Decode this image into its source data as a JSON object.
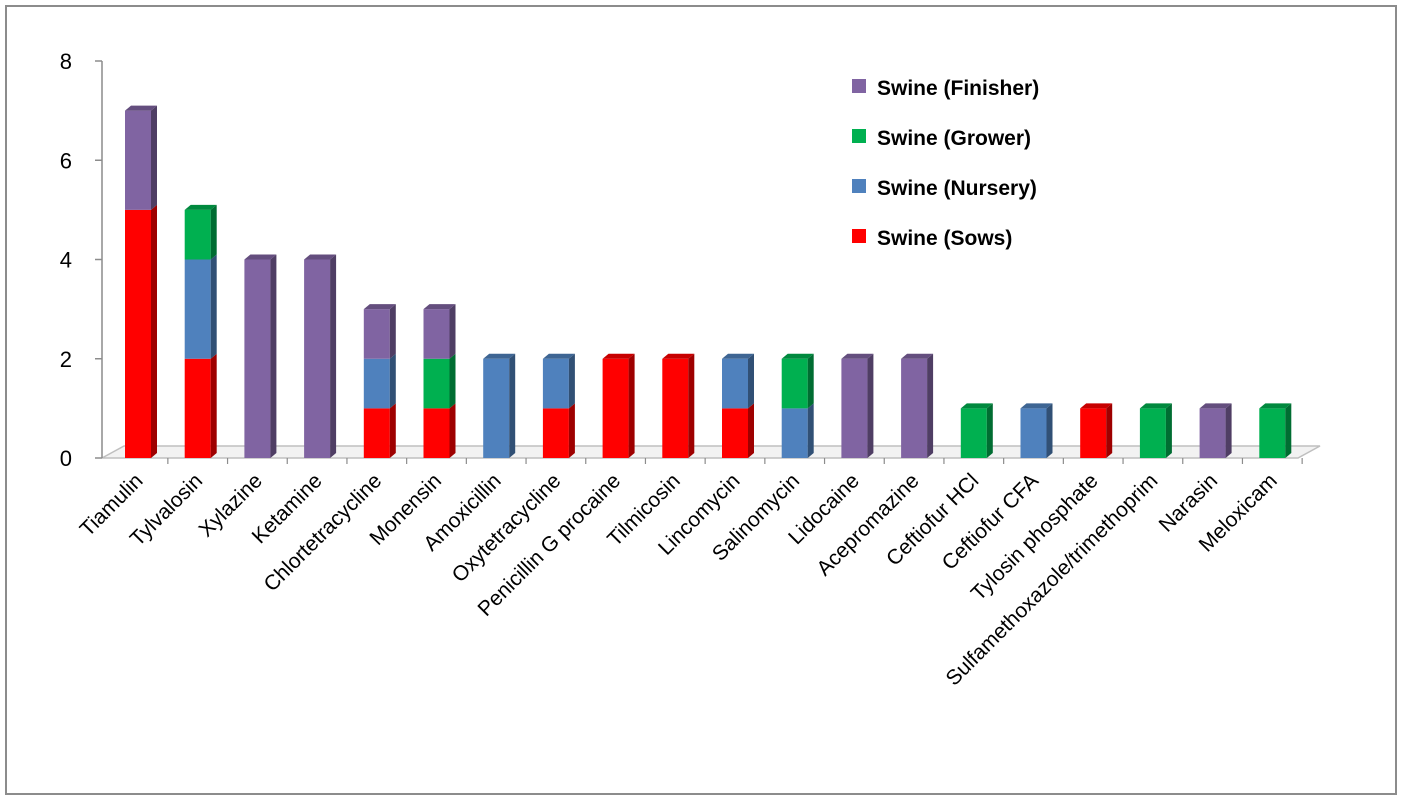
{
  "chart_data": {
    "type": "bar",
    "stacked": true,
    "three_d": true,
    "categories": [
      "Tiamulin",
      "Tylvalosin",
      "Xylazine",
      "Ketamine",
      "Chlortetracycline",
      "Monensin",
      "Amoxicillin",
      "Oxytetracycline",
      "Penicillin G procaine",
      "Tilmicosin",
      "Lincomycin",
      "Salinomycin",
      "Lidocaine",
      "Acepromazine",
      "Ceftiofur HCl",
      "Ceftiofur CFA",
      "Tylosin phosphate",
      "Sulfamethoxazole/trimethoprim",
      "Narasin",
      "Meloxicam"
    ],
    "series": [
      {
        "name": "Swine (Sows)",
        "color": "#ff0000",
        "values": [
          5,
          2,
          0,
          0,
          1,
          1,
          0,
          1,
          2,
          2,
          1,
          0,
          0,
          0,
          0,
          0,
          1,
          0,
          0,
          0
        ]
      },
      {
        "name": "Swine (Nursery)",
        "color": "#4f81bd",
        "values": [
          0,
          2,
          0,
          0,
          1,
          0,
          2,
          1,
          0,
          0,
          1,
          1,
          0,
          0,
          0,
          1,
          0,
          0,
          0,
          0
        ]
      },
      {
        "name": "Swine (Grower)",
        "color": "#00b050",
        "values": [
          0,
          1,
          0,
          0,
          0,
          1,
          0,
          0,
          0,
          0,
          0,
          1,
          0,
          0,
          1,
          0,
          0,
          1,
          0,
          1
        ]
      },
      {
        "name": "Swine (Finisher)",
        "color": "#8064a2",
        "values": [
          2,
          0,
          4,
          4,
          1,
          1,
          0,
          0,
          0,
          0,
          0,
          0,
          2,
          2,
          0,
          0,
          0,
          0,
          1,
          0
        ]
      }
    ],
    "legend_order": [
      "Swine (Finisher)",
      "Swine (Grower)",
      "Swine (Nursery)",
      "Swine (Sows)"
    ],
    "yticks": [
      "0",
      "2",
      "4",
      "6",
      "8"
    ],
    "ylim": [
      0,
      8
    ],
    "title": "",
    "xlabel": "",
    "ylabel": "",
    "grid": false,
    "legend_position": "top-right"
  }
}
